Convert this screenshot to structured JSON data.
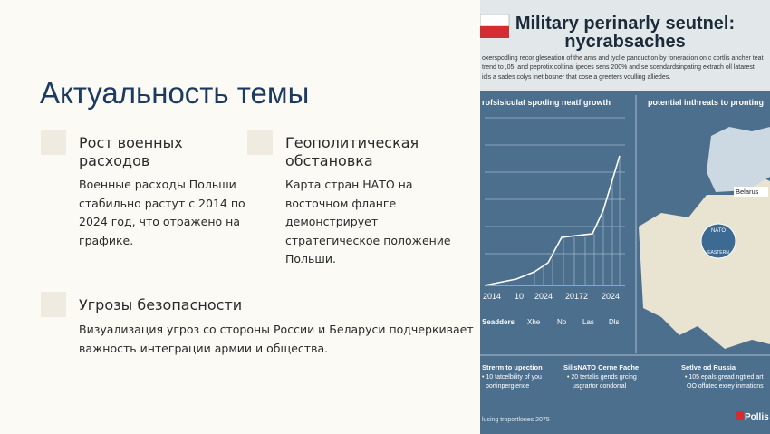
{
  "slide": {
    "title": "Актуальность темы",
    "items": [
      {
        "heading": [
          "Рост военных",
          "расходов"
        ],
        "body": [
          "Военные расходы Польши",
          "стабильно растут с 2014 по",
          "2024 год, что отражено на",
          "графике."
        ]
      },
      {
        "heading": [
          "Геополитическая",
          "обстановка"
        ],
        "body": [
          "Карта стран НАТО на",
          "восточном фланге",
          "демонстрирует",
          "стратегическое положение",
          "Польши."
        ]
      },
      {
        "heading": [
          "Угрозы безопасности"
        ],
        "body": [
          "Визуализация угроз со стороны России и Беларуси подчеркивает",
          "важность интеграции армии и общества."
        ]
      }
    ]
  },
  "infographic": {
    "title": [
      "Military perinarly seutnel:",
      "nycrabsaches"
    ],
    "intro": [
      "oxerspodling recor gleseation of the arns and tyclle panduction by foneracion on c cortlis ancher teat",
      "trend to ,05, and peprotix coltinal ipeces sens 200% and se scendardsinpating extrach oll latarest",
      "icls a sades colys inet bosner that cose a greeters voulling alliedes."
    ],
    "chart_title": "rofsisiculat spoding neatf growth",
    "map_title": "potential inthreats to pronting",
    "x_labels": [
      "2014",
      "10",
      "2024",
      "20172",
      "2024"
    ],
    "legend": [
      "Seadders",
      "Xhe",
      "No",
      "Las",
      "Dls"
    ],
    "map_labels": [
      "Belarus",
      "NATO",
      "EASTERN"
    ],
    "columns": [
      {
        "title": "Strerm to upection",
        "lines": [
          "• 10 tatcelbility of you",
          "portinpergience"
        ]
      },
      {
        "title": "SilisNATO Cerne Fache",
        "lines": [
          "• 20 tertalis gends grcing",
          "usgrartor condorral"
        ]
      },
      {
        "title": "Setlve od Russia",
        "lines": [
          "• 105 epals gread ngtred art",
          "OO offatec exrey inmations"
        ]
      }
    ],
    "footer": "lusing troportlones 2075",
    "logo": "Pollis"
  }
}
